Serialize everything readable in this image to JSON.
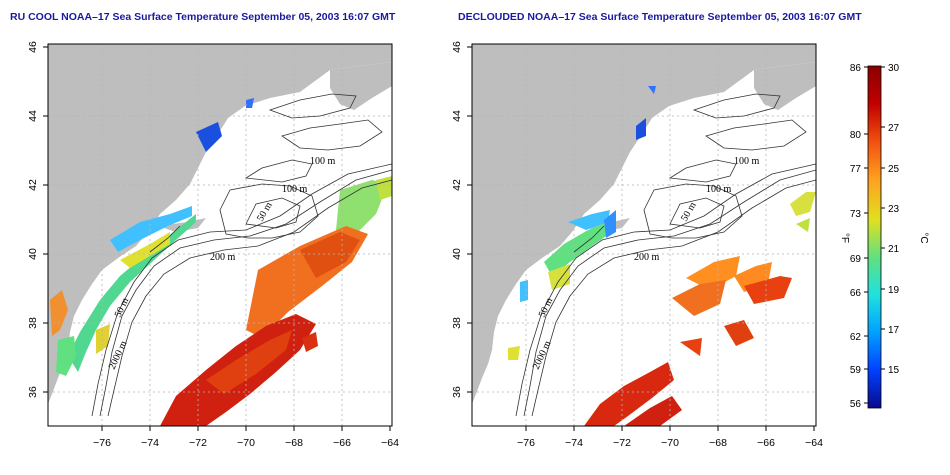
{
  "panels": [
    {
      "id": "left",
      "title": "RU COOL NOAA–17 Sea Surface Temperature September 05, 2003 16:07 GMT",
      "contour_labels": [
        "100 m",
        "100 m",
        "50 m",
        "200 m",
        "50 m",
        "2000 m"
      ]
    },
    {
      "id": "right",
      "title": "DECLOUDED NOAA–17 Sea Surface Temperature September 05, 2003 16:07 GMT",
      "contour_labels": [
        "100 m",
        "100 m",
        "50 m",
        "200 m",
        "50 m",
        "2000 m"
      ]
    }
  ],
  "axes": {
    "x_ticks": [
      "−76",
      "−74",
      "−72",
      "−70",
      "−68",
      "−66",
      "−64"
    ],
    "y_ticks": [
      "36",
      "38",
      "40",
      "42",
      "44",
      "46"
    ],
    "lon_range": [
      -77.3,
      -63.0
    ],
    "lat_range": [
      35.0,
      46.0
    ]
  },
  "colorbar": {
    "f_unit": "°F",
    "c_unit": "°C",
    "f_ticks": [
      "56",
      "59",
      "62",
      "66",
      "69",
      "73",
      "77",
      "80",
      "86"
    ],
    "c_ticks": [
      "15",
      "17",
      "19",
      "21",
      "23",
      "25",
      "27",
      "30"
    ],
    "c_range": [
      13.3,
      30
    ],
    "colors": [
      "#0a0a8c",
      "#0040ff",
      "#00a0ff",
      "#20e0e0",
      "#60e080",
      "#e0e020",
      "#ffa020",
      "#f05010",
      "#c00000",
      "#8c0000"
    ]
  },
  "colors": {
    "land": "#bebebe",
    "grid": "#b4b4b4",
    "contour": "#333333",
    "title": "#1a1aa0"
  }
}
